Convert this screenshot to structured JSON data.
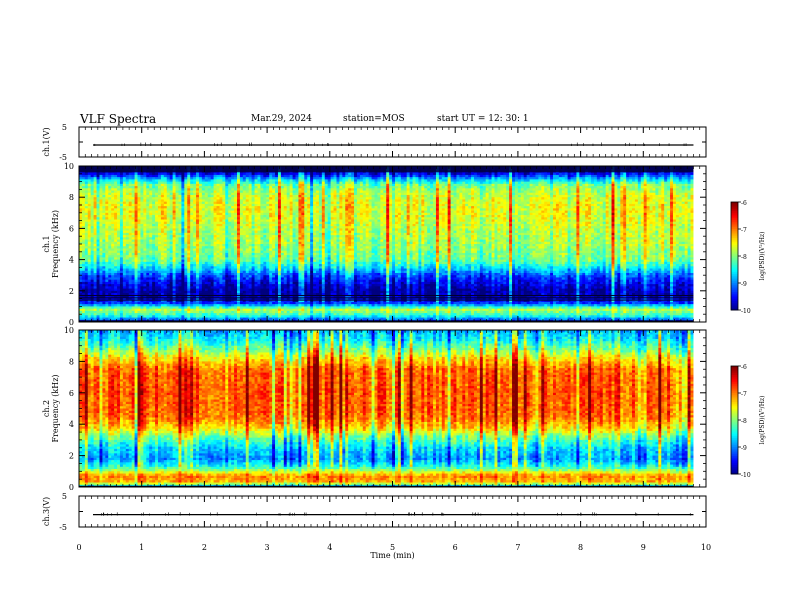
{
  "header": {
    "title": "VLF Spectra",
    "date": "Mar.29, 2024",
    "station": "station=MOS",
    "start": "start  UT  =   12: 30: 1"
  },
  "chart_data": [
    {
      "type": "line",
      "panel": "ch1-waveform",
      "ylabel": "ch.1(V)",
      "ylim": [
        -5,
        5
      ],
      "yticks": [
        "5",
        "-5"
      ],
      "xlim": [
        0,
        10
      ],
      "note_trace_level": -1.0
    },
    {
      "type": "heatmap",
      "panel": "ch1-spectrogram",
      "ylabel_channel": "ch.1",
      "ylabel": "Frequency (kHz)",
      "ylim": [
        0,
        10
      ],
      "yticks": [
        "0",
        "2",
        "4",
        "6",
        "8",
        "10"
      ],
      "xlim": [
        0,
        9.8
      ],
      "colorbar": {
        "label": "log(PSD)(V²/Hz)",
        "ticks": [
          "-6",
          "-7",
          "-8",
          "-9",
          "-10"
        ],
        "range": [
          -10,
          -6
        ]
      },
      "profile": [
        {
          "f": 0.0,
          "v": -9.6
        },
        {
          "f": 0.4,
          "v": -8.4
        },
        {
          "f": 0.8,
          "v": -7.8
        },
        {
          "f": 1.2,
          "v": -9.3
        },
        {
          "f": 1.6,
          "v": -9.9
        },
        {
          "f": 2.0,
          "v": -9.9
        },
        {
          "f": 2.5,
          "v": -9.6
        },
        {
          "f": 3.0,
          "v": -9.2
        },
        {
          "f": 3.5,
          "v": -8.6
        },
        {
          "f": 4.0,
          "v": -8.1
        },
        {
          "f": 5.0,
          "v": -7.9
        },
        {
          "f": 6.0,
          "v": -7.8
        },
        {
          "f": 7.0,
          "v": -7.6
        },
        {
          "f": 8.0,
          "v": -7.7
        },
        {
          "f": 8.8,
          "v": -8.1
        },
        {
          "f": 9.2,
          "v": -8.9
        },
        {
          "f": 9.6,
          "v": -9.8
        },
        {
          "f": 10.0,
          "v": -10.0
        }
      ]
    },
    {
      "type": "heatmap",
      "panel": "ch2-spectrogram",
      "ylabel_channel": "ch.2",
      "ylabel": "Frequency (kHz)",
      "ylim": [
        0,
        10
      ],
      "yticks": [
        "0",
        "2",
        "4",
        "6",
        "8",
        "10"
      ],
      "xlim": [
        0,
        9.8
      ],
      "colorbar": {
        "label": "log(PSD)(V²/Hz)",
        "ticks": [
          "-6",
          "-7",
          "-8",
          "-9",
          "-10"
        ],
        "range": [
          -10,
          -6
        ]
      },
      "profile": [
        {
          "f": 0.0,
          "v": -9.0
        },
        {
          "f": 0.3,
          "v": -7.2
        },
        {
          "f": 0.7,
          "v": -7.0
        },
        {
          "f": 1.2,
          "v": -8.2
        },
        {
          "f": 1.8,
          "v": -8.9
        },
        {
          "f": 2.5,
          "v": -8.6
        },
        {
          "f": 3.2,
          "v": -8.0
        },
        {
          "f": 3.8,
          "v": -7.3
        },
        {
          "f": 4.5,
          "v": -6.9
        },
        {
          "f": 6.0,
          "v": -6.8
        },
        {
          "f": 7.5,
          "v": -6.9
        },
        {
          "f": 8.2,
          "v": -7.4
        },
        {
          "f": 8.8,
          "v": -8.0
        },
        {
          "f": 9.4,
          "v": -8.5
        },
        {
          "f": 10.0,
          "v": -8.8
        }
      ]
    },
    {
      "type": "line",
      "panel": "ch3-waveform",
      "ylabel": "ch.3(V)",
      "ylim": [
        -5,
        5
      ],
      "yticks": [
        "5",
        "-5"
      ],
      "xlim": [
        0,
        10
      ],
      "note_trace_level": -1.0
    }
  ],
  "xaxis": {
    "label": "Time (min)",
    "range": [
      0,
      10
    ],
    "ticks": [
      "0",
      "1",
      "2",
      "3",
      "4",
      "5",
      "6",
      "7",
      "8",
      "9",
      "10"
    ]
  }
}
